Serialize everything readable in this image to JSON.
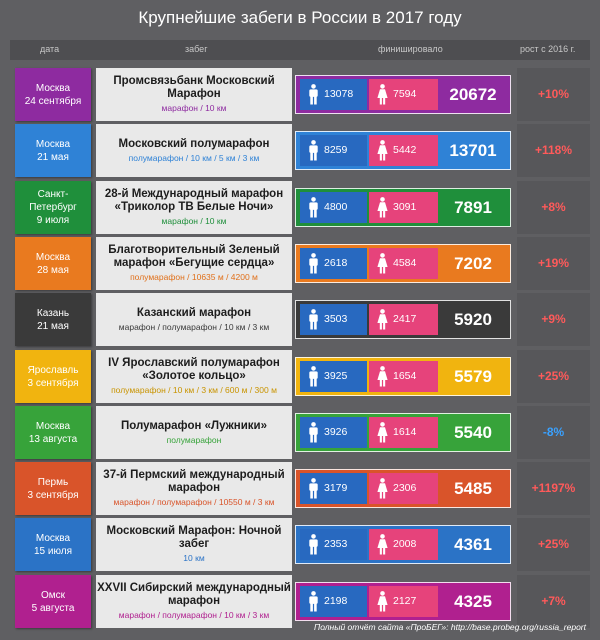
{
  "title": "Крупнейшие забеги в России в 2017 году",
  "headers": {
    "date": "дата",
    "race": "забег",
    "finishers": "финишировало",
    "growth": "рост с 2016 г."
  },
  "footer": "Полный отчёт сайта «ПроБЕГ»: http://base.probeg.org/russia_report",
  "chart_data": {
    "type": "table",
    "columns": [
      "дата",
      "забег",
      "финишировало",
      "рост с 2016 г."
    ],
    "rows": [
      {
        "city": "Москва",
        "date": "24 сентября",
        "name": "Промсвязьбанк Московский Марафон",
        "distances": "марафон / 10 км",
        "men": 13078,
        "women": 7594,
        "total": 20672,
        "growth": "+10%",
        "color": "#8e2ba0",
        "dist_color": "#8e2ba0"
      },
      {
        "city": "Москва",
        "date": "21 мая",
        "name": "Московский полумарафон",
        "distances": "полумарафон / 10 км / 5 км / 3 км",
        "men": 8259,
        "women": 5442,
        "total": 13701,
        "growth": "+118%",
        "color": "#2f82d6",
        "dist_color": "#2f82d6"
      },
      {
        "city": "Санкт-Петербург",
        "date": "9 июля",
        "name": "28-й Международный марафон «Триколор ТВ Белые Ночи»",
        "distances": "марафон / 10 км",
        "men": 4800,
        "women": 3091,
        "total": 7891,
        "growth": "+8%",
        "color": "#1f8f3b",
        "dist_color": "#1f8f3b"
      },
      {
        "city": "Москва",
        "date": "28 мая",
        "name": "Благотворительный Зеленый марафон «Бегущие сердца»",
        "distances": "полумарафон / 10635 м / 4200 м",
        "men": 2618,
        "women": 4584,
        "total": 7202,
        "growth": "+19%",
        "color": "#e97a1f",
        "dist_color": "#e0701a"
      },
      {
        "city": "Казань",
        "date": "21 мая",
        "name": "Казанский марафон",
        "distances": "марафон / полумарафон / 10 км / 3 км",
        "men": 3503,
        "women": 2417,
        "total": 5920,
        "growth": "+9%",
        "color": "#3a3a3a",
        "dist_color": "#3a3a3a"
      },
      {
        "city": "Ярославль",
        "date": "3 сентября",
        "name": "IV Ярославский полумарафон «Золотое кольцо»",
        "distances": "полумарафон / 10 км / 3 км / 600 м / 300 м",
        "men": 3925,
        "women": 1654,
        "total": 5579,
        "growth": "+25%",
        "color": "#f1b40f",
        "dist_color": "#c99400"
      },
      {
        "city": "Москва",
        "date": "13 августа",
        "name": "Полумарафон «Лужники»",
        "distances": "полумарафон",
        "men": 3926,
        "women": 1614,
        "total": 5540,
        "growth": "-8%",
        "color": "#37a33a",
        "dist_color": "#37a33a"
      },
      {
        "city": "Пермь",
        "date": "3 сентября",
        "name": "37-й Пермский международный марафон",
        "distances": "марафон / полумарафон / 10550 м / 3 км",
        "men": 3179,
        "women": 2306,
        "total": 5485,
        "growth": "+1197%",
        "color": "#d9542a",
        "dist_color": "#d9542a"
      },
      {
        "city": "Москва",
        "date": "15 июля",
        "name": "Московский Марафон: Ночной забег",
        "distances": "10 км",
        "men": 2353,
        "women": 2008,
        "total": 4361,
        "growth": "+25%",
        "color": "#2b73c6",
        "dist_color": "#2b73c6"
      },
      {
        "city": "Омск",
        "date": "5 августа",
        "name": "XXVII Сибирский международный марафон",
        "distances": "марафон / полумарафон / 10 км / 3 км",
        "men": 2198,
        "women": 2127,
        "total": 4325,
        "growth": "+7%",
        "color": "#b0208f",
        "dist_color": "#b0208f"
      }
    ]
  }
}
